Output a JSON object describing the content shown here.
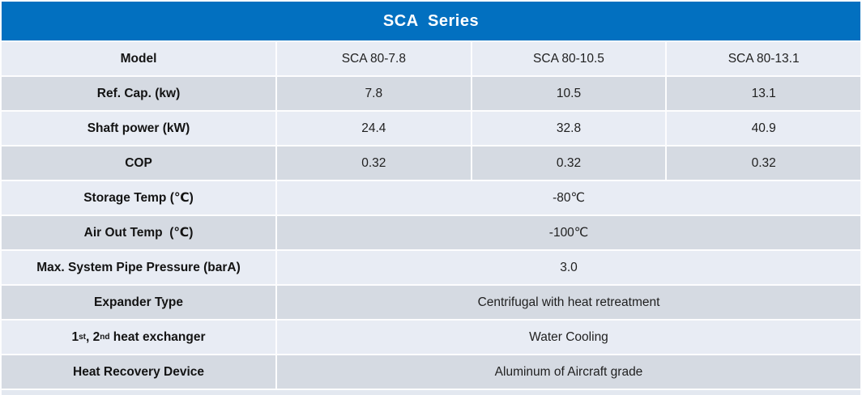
{
  "title": "SCA  Series",
  "colors": {
    "header_bg": "#0270c0",
    "row_light": "#e8ecf4",
    "row_dark": "#d5dae2",
    "title_text": "#ffffff",
    "label_text": "#131313",
    "value_text": "#1f1f1f"
  },
  "table": {
    "rows": [
      {
        "label": "Model",
        "values": [
          "SCA 80-7.8",
          "SCA 80-10.5",
          "SCA 80-13.1"
        ],
        "shade": "light"
      },
      {
        "label": "Ref. Cap. (kw)",
        "values": [
          "7.8",
          "10.5",
          "13.1"
        ],
        "shade": "dark"
      },
      {
        "label": "Shaft power (kW)",
        "values": [
          "24.4",
          "32.8",
          "40.9"
        ],
        "shade": "light"
      },
      {
        "label": "COP",
        "values": [
          "0.32",
          "0.32",
          "0.32"
        ],
        "shade": "dark"
      },
      {
        "label": "Storage Temp (℃)",
        "span_value": "-80℃",
        "shade": "light"
      },
      {
        "label": "Air Out Temp  (℃)",
        "span_value": "-100℃",
        "shade": "dark"
      },
      {
        "label": "Max. System Pipe Pressure (barA)",
        "span_value": "3.0",
        "shade": "light"
      },
      {
        "label": "Expander Type",
        "span_value": "Centrifugal with heat retreatment",
        "shade": "dark"
      },
      {
        "label": "1st, 2nd heat exchanger",
        "label_superscript": true,
        "span_value": "Water Cooling",
        "shade": "light"
      },
      {
        "label": "Heat Recovery Device",
        "span_value": "Aluminum of Aircraft grade",
        "shade": "dark"
      }
    ]
  }
}
